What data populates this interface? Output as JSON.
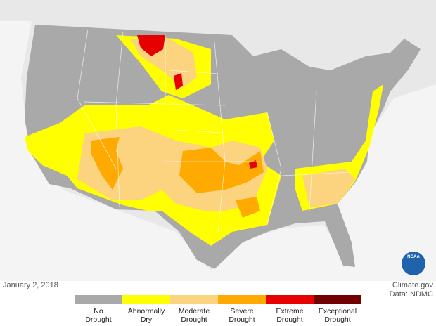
{
  "map": {
    "date": "January 2, 2018",
    "credit": "Climate.gov",
    "source": "Data: NDMC",
    "logo": "NOAA",
    "legend": [
      {
        "label": "No\nDrought",
        "color": "#a9a9a9"
      },
      {
        "label": "Abnormally\nDry",
        "color": "#ffff00"
      },
      {
        "label": "Moderate\nDrought",
        "color": "#fcd37f"
      },
      {
        "label": "Severe\nDrought",
        "color": "#ffaa00"
      },
      {
        "label": "Extreme\nDrought",
        "color": "#e60000"
      },
      {
        "label": "Exceptional\nDrought",
        "color": "#730000"
      }
    ]
  }
}
